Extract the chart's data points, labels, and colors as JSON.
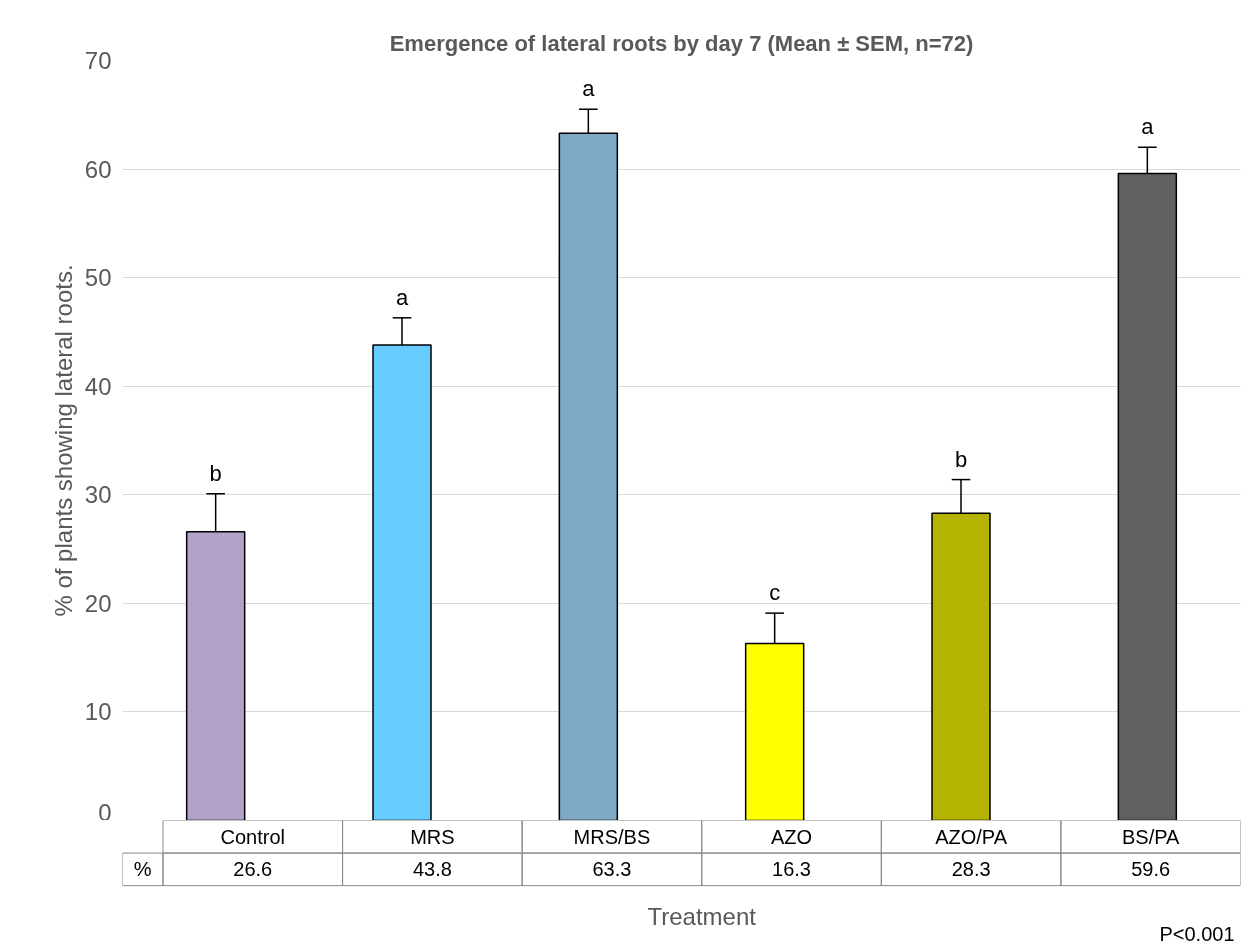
{
  "chart_data": {
    "type": "bar",
    "title": "Emergence of lateral roots by day 7 (Mean ± SEM, n=72)",
    "xlabel": "Treatment",
    "ylabel": "% of plants showing lateral roots.",
    "categories": [
      "Control",
      "MRS",
      "MRS/BS",
      "AZO",
      "AZO/PA",
      "BS/PA"
    ],
    "values": [
      26.6,
      43.8,
      63.3,
      16.3,
      28.3,
      59.6
    ],
    "colors": [
      "#b3a2c7",
      "#66ccff",
      "#7fa9c4",
      "#ffff00",
      "#b3b300",
      "#606060"
    ],
    "errors": [
      [
        26.6,
        30.1
      ],
      [
        43.8,
        46.3
      ],
      [
        63.3,
        65.5
      ],
      [
        16.3,
        19.1
      ],
      [
        28.3,
        31.4
      ],
      [
        59.6,
        62.0
      ]
    ],
    "ylim": [
      0,
      70
    ],
    "yticks": [
      0,
      10,
      20,
      30,
      40,
      50,
      60,
      70
    ],
    "grid": "y",
    "data_labels": true,
    "annotations": [
      "b",
      "a",
      "a",
      "c",
      "b",
      "a",
      "%",
      "P<0.001"
    ]
  }
}
